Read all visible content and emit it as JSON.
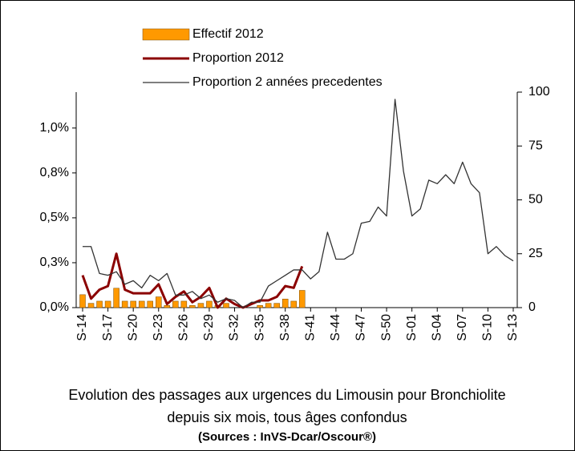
{
  "chart_data": {
    "type": "combo",
    "categories": [
      "S-14",
      null,
      null,
      "S-17",
      null,
      null,
      "S-20",
      null,
      null,
      "S-23",
      null,
      null,
      "S-26",
      null,
      null,
      "S-29",
      null,
      null,
      "S-32",
      null,
      null,
      "S-35",
      null,
      null,
      "S-38",
      null,
      null,
      "S-41",
      null,
      null,
      "S-44",
      null,
      null,
      "S-47",
      null,
      null,
      "S-50",
      null,
      null,
      "S-01",
      null,
      null,
      "S-04",
      null,
      null,
      "S-07",
      null,
      null,
      "S-10",
      null,
      null,
      "S-13"
    ],
    "series": [
      {
        "name": "Effectif 2012",
        "type": "bar",
        "axis": "y2",
        "color": "#ff9900",
        "values": [
          6,
          2,
          3,
          3,
          9,
          3,
          3,
          3,
          3,
          5,
          1,
          3,
          3,
          1,
          2,
          3,
          1,
          2,
          0,
          0,
          0,
          1,
          2,
          2,
          4,
          3,
          8,
          null,
          null,
          null,
          null,
          null,
          null,
          null,
          null,
          null,
          null,
          null,
          null,
          null,
          null,
          null,
          null,
          null,
          null,
          null,
          null,
          null,
          null,
          null,
          null,
          null
        ]
      },
      {
        "name": "Proportion 2012",
        "type": "line",
        "color": "#8b0000",
        "values": [
          0.18,
          0.05,
          0.1,
          0.12,
          0.3,
          0.1,
          0.08,
          0.08,
          0.08,
          0.13,
          0.02,
          0.06,
          0.09,
          0.03,
          0.06,
          0.11,
          0.0,
          0.05,
          0.02,
          0.0,
          0.02,
          0.04,
          0.04,
          0.06,
          0.12,
          0.11,
          0.23,
          null,
          null,
          null,
          null,
          null,
          null,
          null,
          null,
          null,
          null,
          null,
          null,
          null,
          null,
          null,
          null,
          null,
          null,
          null,
          null,
          null,
          null,
          null,
          null,
          null
        ]
      },
      {
        "name": "Proportion 2 années precedentes",
        "type": "line",
        "color": "#333333",
        "values": [
          0.34,
          0.34,
          0.19,
          0.18,
          0.2,
          0.13,
          0.15,
          0.11,
          0.18,
          0.15,
          0.19,
          0.07,
          0.07,
          0.09,
          0.05,
          0.07,
          0.03,
          0.05,
          0.04,
          0.0,
          0.03,
          0.03,
          0.12,
          0.15,
          0.18,
          0.21,
          0.21,
          0.16,
          0.2,
          0.42,
          0.27,
          0.27,
          0.3,
          0.47,
          0.48,
          0.56,
          0.51,
          1.16,
          0.76,
          0.51,
          0.55,
          0.71,
          0.69,
          0.74,
          0.69,
          0.81,
          0.69,
          0.64,
          0.3,
          0.34,
          0.29,
          0.26
        ]
      }
    ],
    "ylim": [
      0,
      1.2
    ],
    "yticks": [
      {
        "value": 0,
        "label": "0,0%"
      },
      {
        "value": 0.25,
        "label": "0,3%"
      },
      {
        "value": 0.5,
        "label": "0,5%"
      },
      {
        "value": 0.75,
        "label": "0,8%"
      },
      {
        "value": 1.0,
        "label": "1,0%"
      }
    ],
    "y2lim": [
      0,
      100
    ],
    "y2ticks": [
      0,
      25,
      50,
      75,
      100
    ],
    "caption": [
      "Evolution des passages aux urgences  du Limousin pour Bronchiolite",
      "depuis six mois, tous âges confondus"
    ],
    "source": "(Sources : InVS-Dcar/Oscour®)"
  }
}
